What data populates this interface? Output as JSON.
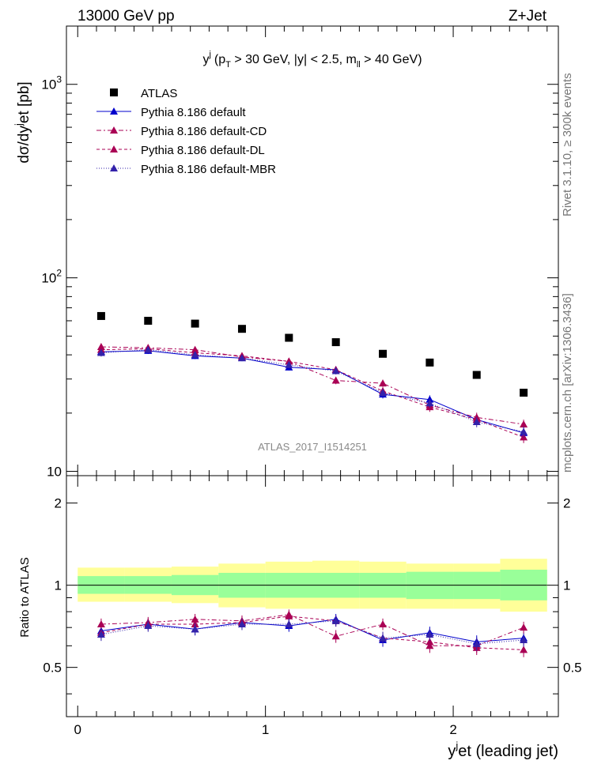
{
  "header": {
    "left": "13000 GeV pp",
    "right": "Z+Jet"
  },
  "side_labels": {
    "rivet": "Rivet 3.1.10, ≥ 300k events",
    "mcplots": "mcplots.cern.ch [arXiv:1306.3436]"
  },
  "colors": {
    "atlas": "#000000",
    "default": "#0000cc",
    "cd": "#aa0055",
    "dl": "#aa0055",
    "mbr": "#3322aa",
    "band_inner": "#99ff99",
    "band_outer": "#ffff99"
  },
  "chart_data": [
    {
      "type": "scatter",
      "title": "y^j (p_T > 30 GeV, |y| < 2.5, m_ll > 40 GeV)",
      "title_parts": {
        "y": "y",
        "j": "j",
        "open": "(p",
        "T": "T",
        "pt_cut": " > 30 GeV, |y| < 2.5, m",
        "ll": "ll",
        "m_cut": " > 40 GeV)"
      },
      "watermark": "ATLAS_2017_I1514251",
      "ylabel": {
        "main": "dσ/dy",
        "sup": "j",
        "tail": "et [pb]"
      },
      "yscale": "log",
      "ylim": [
        9.5,
        2000
      ],
      "xlim": [
        -0.06,
        2.56
      ],
      "yticks": [
        {
          "base": "10",
          "exp": "3",
          "value": 1000
        },
        {
          "base": "10",
          "exp": "2",
          "value": 100
        },
        {
          "base": "10",
          "exp": "",
          "value": 10
        }
      ],
      "x": [
        0.125,
        0.375,
        0.625,
        0.875,
        1.125,
        1.375,
        1.625,
        1.875,
        2.125,
        2.375
      ],
      "bin_edges": [
        0.0,
        0.25,
        0.5,
        0.75,
        1.0,
        1.25,
        1.5,
        1.75,
        2.0,
        2.25,
        2.5
      ],
      "series": [
        {
          "key": "atlas",
          "name": "ATLAS",
          "marker": "square",
          "values": [
            63.5,
            60.0,
            58.0,
            54.5,
            49.0,
            46.5,
            40.5,
            36.5,
            31.5,
            25.5
          ]
        },
        {
          "key": "default",
          "name": "Pythia 8.186 default",
          "marker": "triangle",
          "line": "solid",
          "values": [
            41.5,
            42.0,
            39.5,
            38.5,
            34.5,
            33.5,
            25.0,
            23.5,
            18.5,
            15.8
          ],
          "errors": [
            1.8,
            1.6,
            1.5,
            1.4,
            1.3,
            1.3,
            1.2,
            1.2,
            1.1,
            1.0
          ]
        },
        {
          "key": "cd",
          "name": "Pythia 8.186 default-CD",
          "marker": "triangle",
          "line": "dashdot",
          "values": [
            44.0,
            43.5,
            42.5,
            39.0,
            37.0,
            29.5,
            28.5,
            22.0,
            19.0,
            17.5
          ],
          "errors": [
            1.8,
            1.6,
            1.5,
            1.4,
            1.3,
            1.3,
            1.2,
            1.2,
            1.1,
            1.0
          ]
        },
        {
          "key": "dl",
          "name": "Pythia 8.186 default-DL",
          "marker": "triangle",
          "line": "dashed",
          "values": [
            42.5,
            43.0,
            41.0,
            39.5,
            37.0,
            33.5,
            26.0,
            21.5,
            18.5,
            15.0
          ],
          "errors": [
            1.8,
            1.6,
            1.5,
            1.4,
            1.3,
            1.3,
            1.2,
            1.2,
            1.1,
            1.0
          ]
        },
        {
          "key": "mbr",
          "name": "Pythia 8.186 default-MBR",
          "marker": "triangle",
          "line": "dotted",
          "values": [
            41.0,
            42.5,
            40.0,
            38.5,
            35.5,
            33.0,
            25.5,
            22.5,
            18.0,
            16.0
          ],
          "errors": [
            1.8,
            1.6,
            1.5,
            1.4,
            1.3,
            1.3,
            1.2,
            1.2,
            1.1,
            1.0
          ]
        }
      ]
    },
    {
      "type": "scatter",
      "ylabel": "Ratio to ATLAS",
      "xlabel": {
        "main": "y",
        "sup": "j",
        "tail": "et (leading jet)"
      },
      "xlim": [
        -0.06,
        2.56
      ],
      "ylim": [
        0.33,
        2.52
      ],
      "yticks": [
        {
          "label": "0.5",
          "value": 0.5
        },
        {
          "label": "1",
          "value": 1.0
        },
        {
          "label": "2",
          "value": 2.0
        }
      ],
      "xticks": [
        {
          "label": "0",
          "value": 0
        },
        {
          "label": "1",
          "value": 1
        },
        {
          "label": "2",
          "value": 2
        }
      ],
      "band_edges": [
        0.0,
        0.25,
        0.5,
        0.75,
        1.0,
        1.25,
        1.5,
        1.75,
        2.0,
        2.25,
        2.5
      ],
      "band_inner": [
        [
          0.93,
          1.08
        ],
        [
          0.93,
          1.08
        ],
        [
          0.92,
          1.09
        ],
        [
          0.9,
          1.11
        ],
        [
          0.9,
          1.11
        ],
        [
          0.9,
          1.11
        ],
        [
          0.9,
          1.11
        ],
        [
          0.89,
          1.12
        ],
        [
          0.89,
          1.12
        ],
        [
          0.88,
          1.14
        ]
      ],
      "band_outer": [
        [
          0.87,
          1.16
        ],
        [
          0.87,
          1.16
        ],
        [
          0.86,
          1.17
        ],
        [
          0.83,
          1.2
        ],
        [
          0.82,
          1.22
        ],
        [
          0.82,
          1.23
        ],
        [
          0.82,
          1.22
        ],
        [
          0.82,
          1.2
        ],
        [
          0.82,
          1.2
        ],
        [
          0.8,
          1.25
        ]
      ],
      "x": [
        0.125,
        0.375,
        0.625,
        0.875,
        1.125,
        1.375,
        1.625,
        1.875,
        2.125,
        2.375
      ],
      "series": [
        {
          "key": "default",
          "values": [
            0.68,
            0.72,
            0.69,
            0.73,
            0.71,
            0.75,
            0.63,
            0.67,
            0.62,
            0.64
          ],
          "errors": [
            0.035,
            0.035,
            0.035,
            0.035,
            0.035,
            0.035,
            0.035,
            0.035,
            0.035,
            0.035
          ]
        },
        {
          "key": "cd",
          "values": [
            0.72,
            0.73,
            0.75,
            0.74,
            0.78,
            0.65,
            0.72,
            0.6,
            0.6,
            0.7
          ],
          "errors": [
            0.035,
            0.035,
            0.035,
            0.035,
            0.035,
            0.035,
            0.035,
            0.035,
            0.035,
            0.035
          ]
        },
        {
          "key": "dl",
          "values": [
            0.67,
            0.72,
            0.72,
            0.73,
            0.77,
            0.74,
            0.64,
            0.62,
            0.59,
            0.58
          ],
          "errors": [
            0.035,
            0.035,
            0.035,
            0.035,
            0.035,
            0.035,
            0.035,
            0.035,
            0.035,
            0.035
          ]
        },
        {
          "key": "mbr",
          "values": [
            0.66,
            0.71,
            0.69,
            0.72,
            0.72,
            0.74,
            0.64,
            0.66,
            0.61,
            0.63
          ],
          "errors": [
            0.035,
            0.035,
            0.035,
            0.035,
            0.035,
            0.035,
            0.035,
            0.035,
            0.035,
            0.035
          ]
        }
      ]
    }
  ]
}
